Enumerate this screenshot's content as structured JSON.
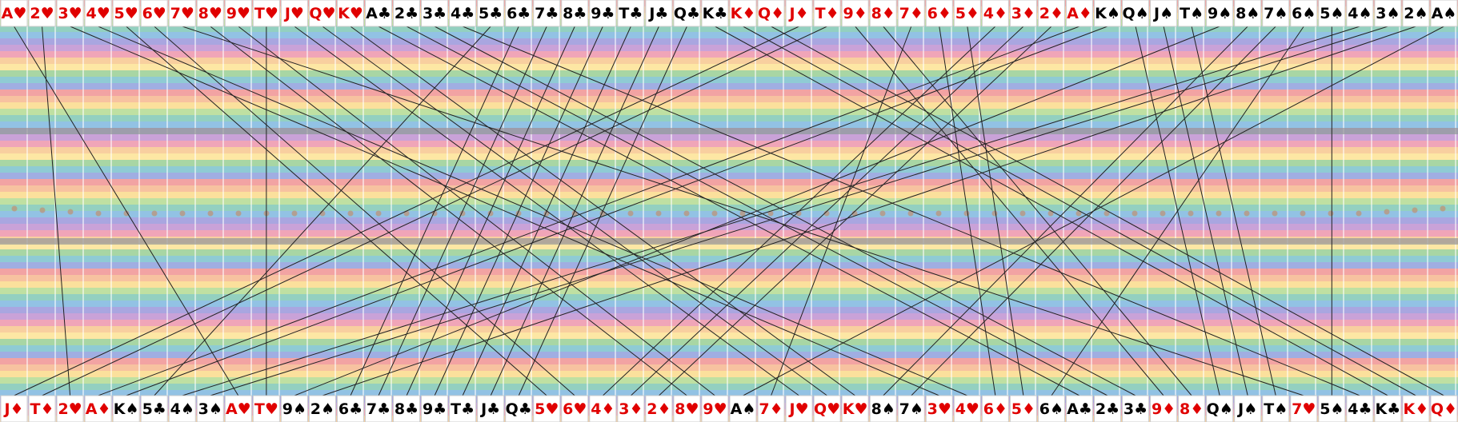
{
  "top": [
    "A♥",
    "2♥",
    "3♥",
    "4♥",
    "5♥",
    "6♥",
    "7♥",
    "8♥",
    "9♥",
    "T♥",
    "J♥",
    "Q♥",
    "K♥",
    "A♣",
    "2♣",
    "3♣",
    "4♣",
    "5♣",
    "6♣",
    "7♣",
    "8♣",
    "9♣",
    "T♣",
    "J♣",
    "Q♣",
    "K♣",
    "K♦",
    "Q♦",
    "J♦",
    "T♦",
    "9♦",
    "8♦",
    "7♦",
    "6♦",
    "5♦",
    "4♦",
    "3♦",
    "2♦",
    "A♦",
    "K♠",
    "Q♠",
    "J♠",
    "T♠",
    "9♠",
    "8♠",
    "7♠",
    "6♠",
    "5♠",
    "4♠",
    "3♠",
    "2♠",
    "A♠"
  ],
  "bottom": [
    "J♦",
    "T♦",
    "2♥",
    "A♦",
    "K♠",
    "5♣",
    "4♠",
    "3♠",
    "A♥",
    "T♥",
    "9♠",
    "2♠",
    "6♣",
    "7♣",
    "8♣",
    "9♣",
    "T♣",
    "J♣",
    "Q♣",
    "5♥",
    "6♥",
    "4♦",
    "3♦",
    "2♦",
    "8♥",
    "9♥",
    "A♠",
    "7♦",
    "J♥",
    "Q♥",
    "K♥",
    "8♠",
    "7♠",
    "3♥",
    "4♥",
    "6♦",
    "5♦",
    "6♠",
    "A♣",
    "2♣",
    "3♣",
    "9♦",
    "8♦",
    "Q♠",
    "J♠",
    "T♠",
    "7♥",
    "5♠",
    "4♣",
    "K♣",
    "K♦",
    "Q♦"
  ]
}
